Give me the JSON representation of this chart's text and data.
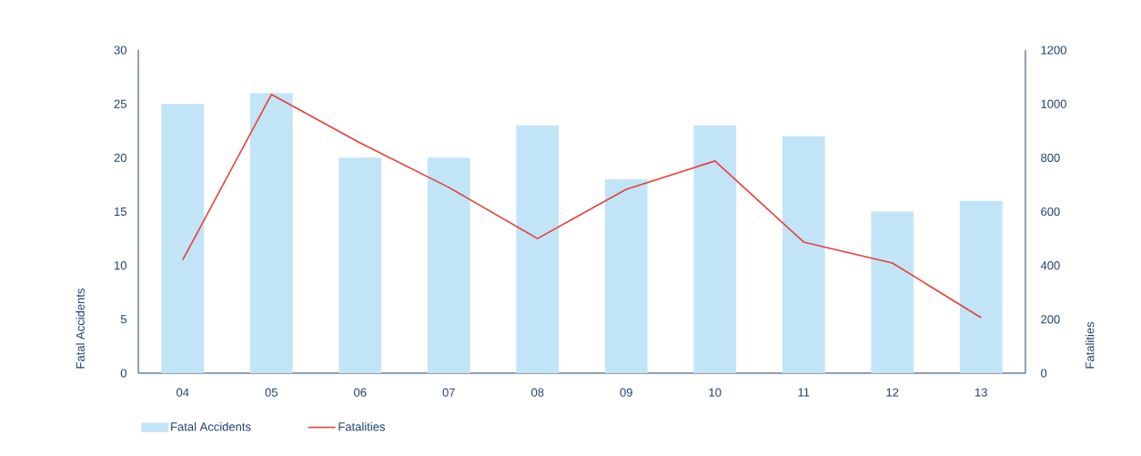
{
  "chart_data": {
    "type": "bar",
    "categories": [
      "04",
      "05",
      "06",
      "07",
      "08",
      "09",
      "10",
      "11",
      "12",
      "13"
    ],
    "series": [
      {
        "name": "Fatal Accidents",
        "color": "#c2e4f7",
        "values": [
          25,
          26,
          20,
          20,
          23,
          18,
          23,
          22,
          15,
          16
        ]
      },
      {
        "name": "Fatalities",
        "type": "line",
        "axis": "y2",
        "color": "#e8403a",
        "values": [
          420,
          1035,
          855,
          690,
          500,
          683,
          788,
          487,
          409,
          206
        ]
      }
    ],
    "ylabel": "Fatal Accidents",
    "y2label": "Fatalities",
    "ylim": [
      0,
      30
    ],
    "yticks": [
      0,
      5,
      10,
      15,
      20,
      25,
      30
    ],
    "y2lim": [
      0,
      1200
    ],
    "y2ticks": [
      0,
      200,
      400,
      600,
      800,
      1000,
      1200
    ],
    "legend": "bottom left"
  }
}
